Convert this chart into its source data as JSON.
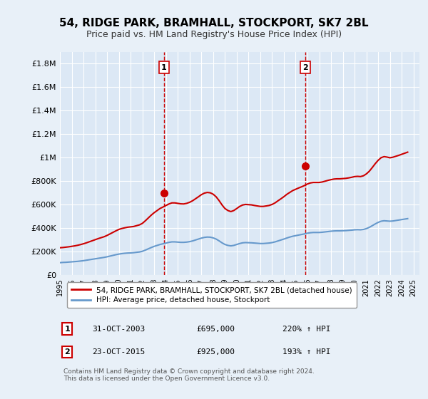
{
  "title": "54, RIDGE PARK, BRAMHALL, STOCKPORT, SK7 2BL",
  "subtitle": "Price paid vs. HM Land Registry's House Price Index (HPI)",
  "ylabel_ticks": [
    "£0",
    "£200K",
    "£400K",
    "£600K",
    "£800K",
    "£1M",
    "£1.2M",
    "£1.4M",
    "£1.6M",
    "£1.8M"
  ],
  "ytick_values": [
    0,
    200000,
    400000,
    600000,
    800000,
    1000000,
    1200000,
    1400000,
    1600000,
    1800000
  ],
  "ylim": [
    0,
    1900000
  ],
  "xlim_start": 1995.0,
  "xlim_end": 2025.5,
  "xtick_years": [
    1995,
    1996,
    1997,
    1998,
    1999,
    2000,
    2001,
    2002,
    2003,
    2004,
    2005,
    2006,
    2007,
    2008,
    2009,
    2010,
    2011,
    2012,
    2013,
    2014,
    2015,
    2016,
    2017,
    2018,
    2019,
    2020,
    2021,
    2022,
    2023,
    2024,
    2025
  ],
  "background_color": "#e8f0f8",
  "plot_bg_color": "#dce8f5",
  "grid_color": "#ffffff",
  "sale1_x": 2003.83,
  "sale1_y": 695000,
  "sale1_label": "1",
  "sale2_x": 2015.81,
  "sale2_y": 925000,
  "sale2_label": "2",
  "sale1_dashed_color": "#cc0000",
  "sale2_dashed_color": "#cc0000",
  "red_line_color": "#cc0000",
  "blue_line_color": "#6699cc",
  "legend_red_label": "54, RIDGE PARK, BRAMHALL, STOCKPORT, SK7 2BL (detached house)",
  "legend_blue_label": "HPI: Average price, detached house, Stockport",
  "note1_num": "1",
  "note1_date": "31-OCT-2003",
  "note1_price": "£695,000",
  "note1_hpi": "220% ↑ HPI",
  "note2_num": "2",
  "note2_date": "23-OCT-2015",
  "note2_price": "£925,000",
  "note2_hpi": "193% ↑ HPI",
  "footer": "Contains HM Land Registry data © Crown copyright and database right 2024.\nThis data is licensed under the Open Government Licence v3.0.",
  "hpi_data": {
    "x": [
      1995.0,
      1995.25,
      1995.5,
      1995.75,
      1996.0,
      1996.25,
      1996.5,
      1996.75,
      1997.0,
      1997.25,
      1997.5,
      1997.75,
      1998.0,
      1998.25,
      1998.5,
      1998.75,
      1999.0,
      1999.25,
      1999.5,
      1999.75,
      2000.0,
      2000.25,
      2000.5,
      2000.75,
      2001.0,
      2001.25,
      2001.5,
      2001.75,
      2002.0,
      2002.25,
      2002.5,
      2002.75,
      2003.0,
      2003.25,
      2003.5,
      2003.75,
      2004.0,
      2004.25,
      2004.5,
      2004.75,
      2005.0,
      2005.25,
      2005.5,
      2005.75,
      2006.0,
      2006.25,
      2006.5,
      2006.75,
      2007.0,
      2007.25,
      2007.5,
      2007.75,
      2008.0,
      2008.25,
      2008.5,
      2008.75,
      2009.0,
      2009.25,
      2009.5,
      2009.75,
      2010.0,
      2010.25,
      2010.5,
      2010.75,
      2011.0,
      2011.25,
      2011.5,
      2011.75,
      2012.0,
      2012.25,
      2012.5,
      2012.75,
      2013.0,
      2013.25,
      2013.5,
      2013.75,
      2014.0,
      2014.25,
      2014.5,
      2014.75,
      2015.0,
      2015.25,
      2015.5,
      2015.75,
      2016.0,
      2016.25,
      2016.5,
      2016.75,
      2017.0,
      2017.25,
      2017.5,
      2017.75,
      2018.0,
      2018.25,
      2018.5,
      2018.75,
      2019.0,
      2019.25,
      2019.5,
      2019.75,
      2020.0,
      2020.25,
      2020.5,
      2020.75,
      2021.0,
      2021.25,
      2021.5,
      2021.75,
      2022.0,
      2022.25,
      2022.5,
      2022.75,
      2023.0,
      2023.25,
      2023.5,
      2023.75,
      2024.0,
      2024.25,
      2024.5
    ],
    "y": [
      105000,
      107000,
      108000,
      110000,
      112000,
      114000,
      116000,
      119000,
      122000,
      126000,
      130000,
      134000,
      138000,
      142000,
      146000,
      150000,
      155000,
      161000,
      167000,
      173000,
      178000,
      182000,
      185000,
      187000,
      188000,
      190000,
      193000,
      196000,
      202000,
      212000,
      223000,
      234000,
      244000,
      252000,
      260000,
      266000,
      272000,
      278000,
      282000,
      282000,
      280000,
      278000,
      278000,
      280000,
      284000,
      290000,
      298000,
      306000,
      314000,
      320000,
      323000,
      322000,
      316000,
      306000,
      291000,
      274000,
      260000,
      252000,
      248000,
      252000,
      260000,
      268000,
      274000,
      276000,
      275000,
      274000,
      272000,
      270000,
      268000,
      268000,
      270000,
      272000,
      276000,
      282000,
      290000,
      298000,
      306000,
      315000,
      323000,
      330000,
      335000,
      340000,
      345000,
      350000,
      356000,
      360000,
      362000,
      362000,
      362000,
      364000,
      367000,
      370000,
      373000,
      375000,
      376000,
      376000,
      377000,
      378000,
      380000,
      382000,
      385000,
      386000,
      385000,
      388000,
      395000,
      406000,
      420000,
      435000,
      448000,
      458000,
      462000,
      460000,
      458000,
      460000,
      464000,
      468000,
      472000,
      476000,
      480000
    ]
  },
  "red_data": {
    "x": [
      1995.0,
      1995.25,
      1995.5,
      1995.75,
      1996.0,
      1996.25,
      1996.5,
      1996.75,
      1997.0,
      1997.25,
      1997.5,
      1997.75,
      1998.0,
      1998.25,
      1998.5,
      1998.75,
      1999.0,
      1999.25,
      1999.5,
      1999.75,
      2000.0,
      2000.25,
      2000.5,
      2000.75,
      2001.0,
      2001.25,
      2001.5,
      2001.75,
      2002.0,
      2002.25,
      2002.5,
      2002.75,
      2003.0,
      2003.25,
      2003.5,
      2003.75,
      2004.0,
      2004.25,
      2004.5,
      2004.75,
      2005.0,
      2005.25,
      2005.5,
      2005.75,
      2006.0,
      2006.25,
      2006.5,
      2006.75,
      2007.0,
      2007.25,
      2007.5,
      2007.75,
      2008.0,
      2008.25,
      2008.5,
      2008.75,
      2009.0,
      2009.25,
      2009.5,
      2009.75,
      2010.0,
      2010.25,
      2010.5,
      2010.75,
      2011.0,
      2011.25,
      2011.5,
      2011.75,
      2012.0,
      2012.25,
      2012.5,
      2012.75,
      2013.0,
      2013.25,
      2013.5,
      2013.75,
      2014.0,
      2014.25,
      2014.5,
      2014.75,
      2015.0,
      2015.25,
      2015.5,
      2015.75,
      2016.0,
      2016.25,
      2016.5,
      2016.75,
      2017.0,
      2017.25,
      2017.5,
      2017.75,
      2018.0,
      2018.25,
      2018.5,
      2018.75,
      2019.0,
      2019.25,
      2019.5,
      2019.75,
      2020.0,
      2020.25,
      2020.5,
      2020.75,
      2021.0,
      2021.25,
      2021.5,
      2021.75,
      2022.0,
      2022.25,
      2022.5,
      2022.75,
      2023.0,
      2023.25,
      2023.5,
      2023.75,
      2024.0,
      2024.25,
      2024.5
    ],
    "y": [
      232000,
      234000,
      237000,
      240000,
      244000,
      248000,
      253000,
      259000,
      266000,
      274000,
      283000,
      292000,
      301000,
      310000,
      318000,
      326000,
      337000,
      350000,
      363000,
      376000,
      388000,
      396000,
      402000,
      407000,
      410000,
      413000,
      420000,
      427000,
      440000,
      462000,
      486000,
      510000,
      531000,
      549000,
      567000,
      579000,
      592000,
      605000,
      614000,
      614000,
      610000,
      606000,
      605000,
      610000,
      619000,
      632000,
      649000,
      666000,
      684000,
      697000,
      703000,
      700000,
      688000,
      666000,
      634000,
      597000,
      566000,
      549000,
      540000,
      549000,
      566000,
      584000,
      596000,
      601000,
      599000,
      597000,
      592000,
      588000,
      584000,
      584000,
      588000,
      592000,
      601000,
      614000,
      632000,
      649000,
      667000,
      687000,
      703000,
      719000,
      730000,
      741000,
      751000,
      762000,
      775000,
      784000,
      788000,
      788000,
      788000,
      792000,
      799000,
      806000,
      812000,
      817000,
      819000,
      819000,
      821000,
      823000,
      827000,
      832000,
      838000,
      840000,
      838000,
      845000,
      861000,
      884000,
      915000,
      948000,
      977000,
      999000,
      1008000,
      1004000,
      998000,
      1003000,
      1011000,
      1019000,
      1028000,
      1037000,
      1046000
    ]
  }
}
